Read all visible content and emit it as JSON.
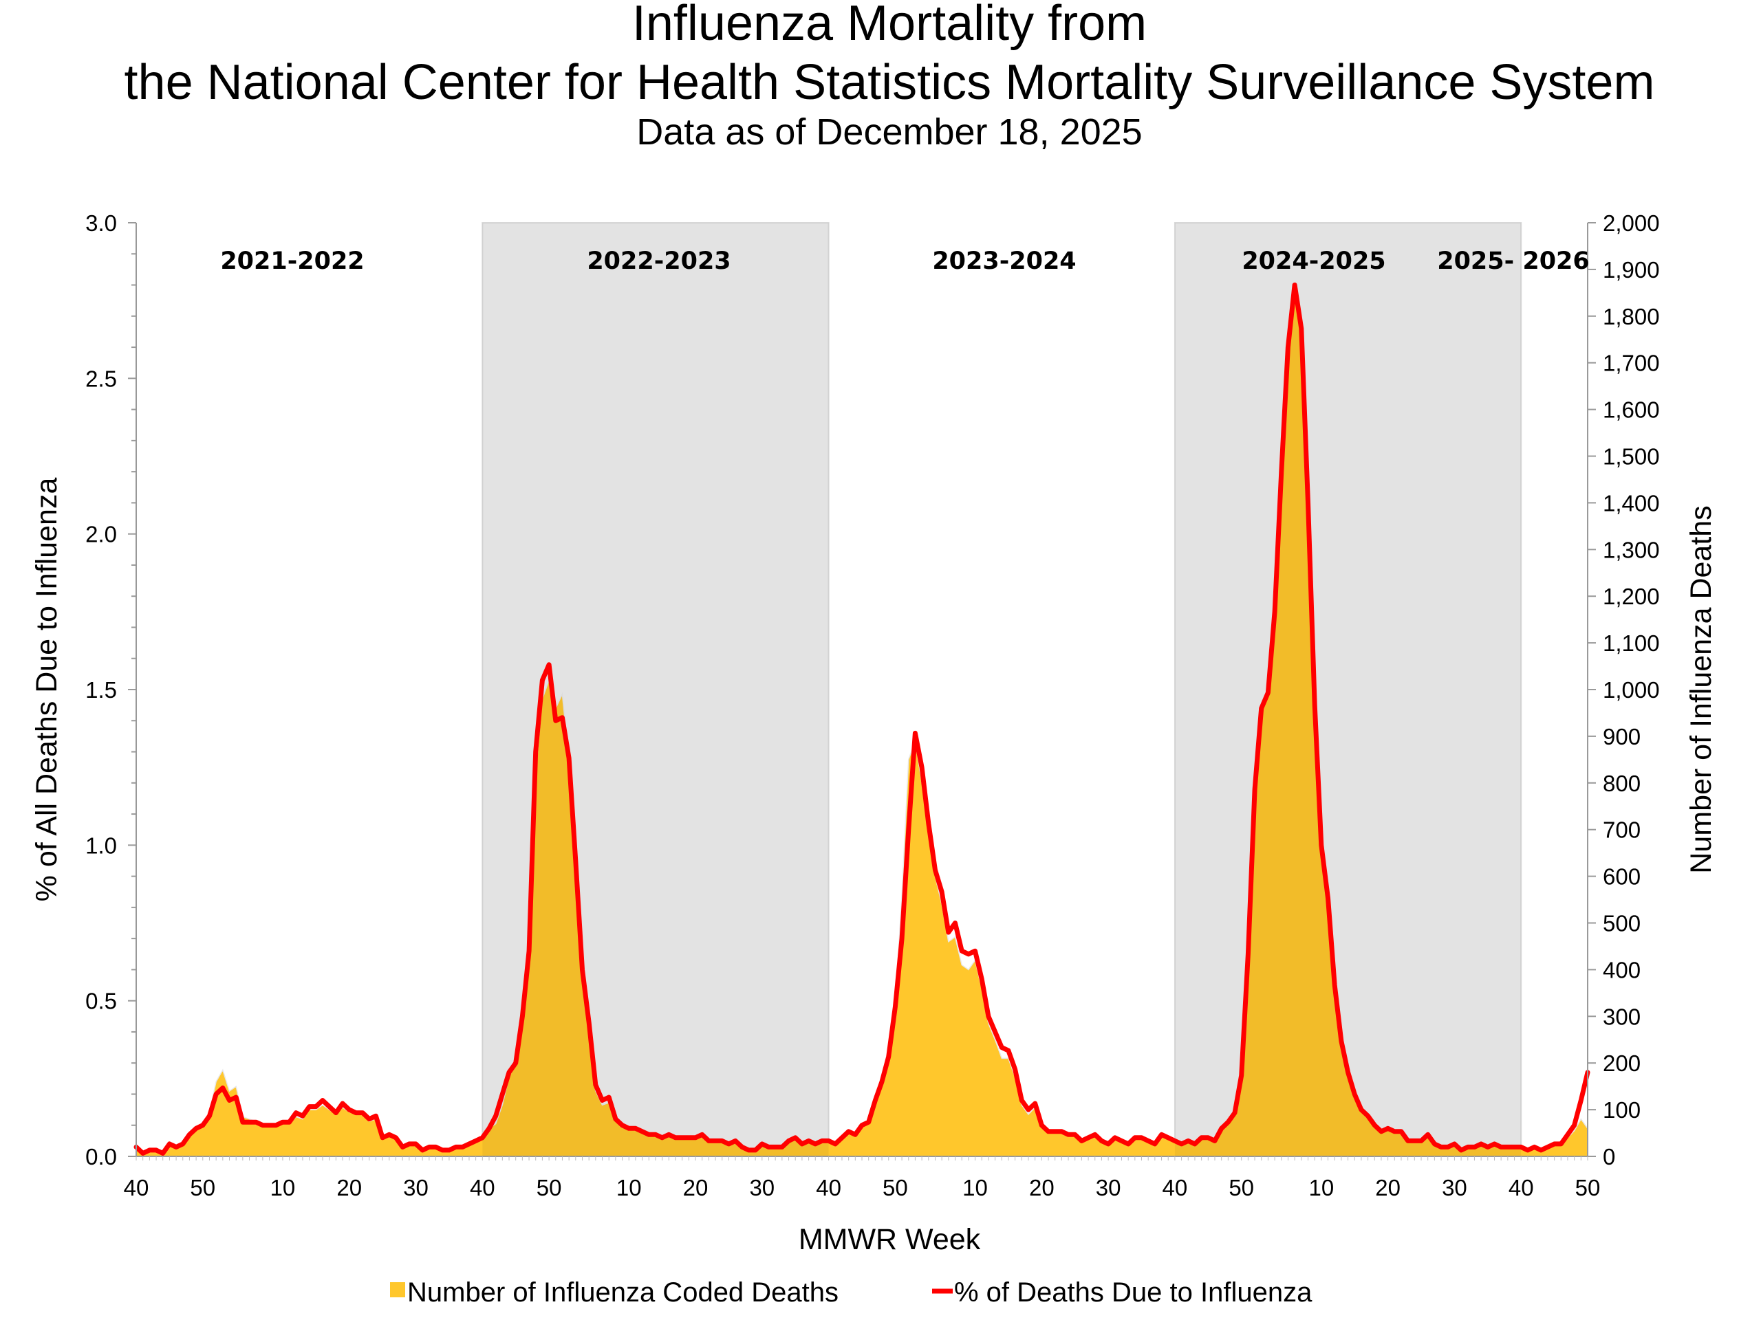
{
  "chart_data": {
    "type": "area+line",
    "title_line1": "Influenza Mortality from",
    "title_line2": "the National Center for Health Statistics Mortality Surveillance System",
    "subtitle": "Data as of December 18, 2025",
    "xlabel": "MMWR Week",
    "ylabel_left": "% of All Deaths Due to Influenza",
    "ylabel_right": "Number of Influenza Deaths",
    "ylim_left": [
      0,
      3.0
    ],
    "ylim_right": [
      0,
      2000
    ],
    "left_ticks": [
      "0.0",
      "0.5",
      "1.0",
      "1.5",
      "2.0",
      "2.5",
      "3.0"
    ],
    "right_ticks": [
      "0",
      "100",
      "200",
      "300",
      "400",
      "500",
      "600",
      "700",
      "800",
      "900",
      "1,000",
      "1,100",
      "1,200",
      "1,300",
      "1,400",
      "1,500",
      "1,600",
      "1,700",
      "1,800",
      "1,900",
      "2,000"
    ],
    "x_tick_labels": [
      "40",
      "50",
      "10",
      "20",
      "30",
      "40",
      "50",
      "10",
      "20",
      "30",
      "40",
      "50",
      "10",
      "20",
      "30",
      "40",
      "50",
      "10",
      "20",
      "30",
      "40",
      "50"
    ],
    "grid": false,
    "legend_position": "bottom",
    "legend": [
      "Number of Influenza Coded Deaths",
      "% of Deaths Due to Influenza"
    ],
    "colors": {
      "deaths_area": "#FFC72C",
      "pct_line": "#FF0000",
      "shaded_season": "#F0F0F0"
    },
    "seasons": [
      {
        "label": "2021-2022",
        "shaded": false,
        "first_week": 40,
        "last_week": 39,
        "pct": [
          0.03,
          0.01,
          0.02,
          0.02,
          0.01,
          0.04,
          0.03,
          0.04,
          0.07,
          0.09,
          0.1,
          0.13,
          0.2,
          0.22,
          0.18,
          0.19,
          0.11,
          0.11,
          0.11,
          0.1,
          0.1,
          0.1,
          0.11,
          0.11,
          0.14,
          0.13,
          0.16,
          0.16,
          0.18,
          0.16,
          0.14,
          0.17,
          0.15,
          0.14,
          0.14,
          0.12,
          0.13,
          0.06,
          0.07,
          0.06,
          0.03,
          0.04,
          0.04,
          0.02,
          0.03,
          0.03,
          0.02,
          0.02,
          0.03,
          0.03,
          0.04,
          0.05
        ],
        "deaths": [
          15,
          8,
          12,
          12,
          8,
          25,
          20,
          25,
          45,
          60,
          70,
          95,
          160,
          185,
          140,
          150,
          85,
          80,
          75,
          65,
          65,
          65,
          70,
          70,
          85,
          80,
          100,
          100,
          110,
          100,
          90,
          105,
          95,
          90,
          90,
          75,
          80,
          40,
          45,
          40,
          20,
          25,
          25,
          15,
          20,
          20,
          15,
          15,
          20,
          20,
          25,
          30
        ]
      },
      {
        "label": "2022-2023",
        "shaded": true,
        "first_week": 40,
        "last_week": 39,
        "pct": [
          0.06,
          0.09,
          0.13,
          0.2,
          0.27,
          0.3,
          0.45,
          0.66,
          1.3,
          1.53,
          1.58,
          1.4,
          1.41,
          1.28,
          0.95,
          0.6,
          0.43,
          0.23,
          0.18,
          0.19,
          0.12,
          0.1,
          0.09,
          0.09,
          0.08,
          0.07,
          0.07,
          0.06,
          0.07,
          0.06,
          0.06,
          0.06,
          0.06,
          0.07,
          0.05,
          0.05,
          0.05,
          0.04,
          0.05,
          0.03,
          0.02,
          0.02,
          0.04,
          0.03,
          0.03,
          0.03,
          0.05,
          0.06,
          0.04,
          0.05,
          0.04,
          0.05
        ],
        "deaths": [
          40,
          60,
          70,
          110,
          170,
          200,
          290,
          430,
          820,
          980,
          1020,
          960,
          990,
          850,
          620,
          380,
          260,
          140,
          110,
          115,
          75,
          65,
          58,
          58,
          52,
          46,
          46,
          40,
          45,
          40,
          40,
          40,
          40,
          45,
          33,
          33,
          33,
          26,
          33,
          20,
          13,
          13,
          26,
          20,
          20,
          20,
          33,
          40,
          26,
          33,
          26,
          33
        ]
      },
      {
        "label": "2023-2024",
        "shaded": false,
        "first_week": 40,
        "last_week": 39,
        "pct": [
          0.05,
          0.04,
          0.06,
          0.08,
          0.07,
          0.1,
          0.11,
          0.18,
          0.24,
          0.32,
          0.48,
          0.7,
          1.05,
          1.36,
          1.25,
          1.07,
          0.92,
          0.85,
          0.72,
          0.75,
          0.66,
          0.65,
          0.66,
          0.57,
          0.45,
          0.4,
          0.35,
          0.34,
          0.28,
          0.18,
          0.15,
          0.17,
          0.1,
          0.08,
          0.08,
          0.08,
          0.07,
          0.07,
          0.05,
          0.06,
          0.07,
          0.05,
          0.04,
          0.06,
          0.05,
          0.04,
          0.06,
          0.06,
          0.05,
          0.04,
          0.07,
          0.06
        ],
        "deaths": [
          33,
          26,
          40,
          53,
          46,
          66,
          73,
          120,
          160,
          215,
          320,
          560,
          850,
          890,
          800,
          690,
          600,
          540,
          460,
          470,
          410,
          400,
          420,
          360,
          285,
          250,
          210,
          210,
          170,
          110,
          90,
          105,
          62,
          50,
          50,
          50,
          44,
          44,
          30,
          37,
          44,
          30,
          25,
          37,
          30,
          25,
          37,
          37,
          30,
          25,
          44,
          40
        ]
      },
      {
        "label": "2024-2025",
        "shaded": true,
        "first_week": 40,
        "last_week": 39,
        "pct": [
          0.05,
          0.04,
          0.05,
          0.04,
          0.06,
          0.06,
          0.05,
          0.09,
          0.11,
          0.14,
          0.26,
          0.65,
          1.18,
          1.44,
          1.49,
          1.75,
          2.2,
          2.6,
          2.8,
          2.66,
          2.1,
          1.45,
          1.0,
          0.83,
          0.55,
          0.37,
          0.27,
          0.2,
          0.15,
          0.13,
          0.1,
          0.08,
          0.09,
          0.08,
          0.08,
          0.05,
          0.05,
          0.05,
          0.07,
          0.04,
          0.03,
          0.03,
          0.04,
          0.02,
          0.03,
          0.03,
          0.04,
          0.03,
          0.04,
          0.03,
          0.03,
          0.03
        ],
        "deaths": [
          33,
          26,
          33,
          26,
          40,
          40,
          33,
          60,
          73,
          93,
          175,
          430,
          790,
          960,
          1000,
          1160,
          1470,
          1730,
          1840,
          1770,
          1400,
          960,
          660,
          530,
          350,
          240,
          175,
          130,
          95,
          85,
          65,
          52,
          58,
          52,
          52,
          33,
          33,
          33,
          45,
          26,
          20,
          20,
          26,
          13,
          20,
          20,
          26,
          20,
          26,
          20,
          20,
          20
        ]
      },
      {
        "label": "2025- 2026",
        "shaded": false,
        "first_week": 40,
        "last_week": 50,
        "pct": [
          0.03,
          0.02,
          0.03,
          0.02,
          0.03,
          0.04,
          0.04,
          0.07,
          0.1,
          0.18,
          0.27
        ],
        "deaths": [
          20,
          13,
          20,
          13,
          20,
          26,
          28,
          40,
          55,
          80,
          60
        ]
      }
    ]
  }
}
